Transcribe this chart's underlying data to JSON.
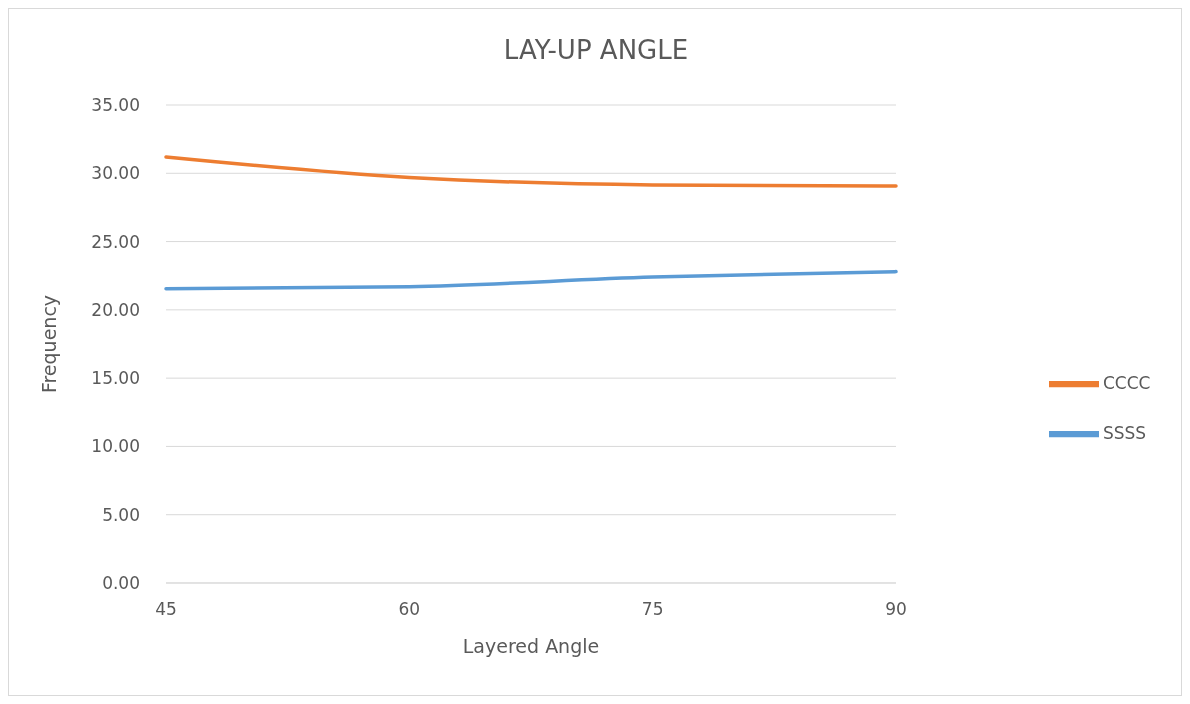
{
  "chart_data": {
    "type": "line",
    "title": "LAY-UP ANGLE",
    "xlabel": "Layered Angle",
    "ylabel": "Frequency",
    "categories": [
      "45",
      "60",
      "75",
      "90"
    ],
    "series": [
      {
        "name": "SSSS",
        "color": "#5b9bd5",
        "values": [
          21.55,
          21.7,
          22.4,
          22.8
        ]
      },
      {
        "name": "CCCC",
        "color": "#ed7d31",
        "values": [
          31.2,
          29.7,
          29.15,
          29.07
        ]
      }
    ],
    "ylim": [
      0,
      35
    ],
    "yticks": [
      {
        "value": 0,
        "label": "0.00"
      },
      {
        "value": 5,
        "label": "5.00"
      },
      {
        "value": 10,
        "label": "10.00"
      },
      {
        "value": 15,
        "label": "15.00"
      },
      {
        "value": 20,
        "label": "20.00"
      },
      {
        "value": 25,
        "label": "25.00"
      },
      {
        "value": 30,
        "label": "30.00"
      },
      {
        "value": 35,
        "label": "35.00"
      }
    ],
    "grid": "y",
    "legend": "right",
    "marker": "none",
    "line_style": "solid"
  }
}
